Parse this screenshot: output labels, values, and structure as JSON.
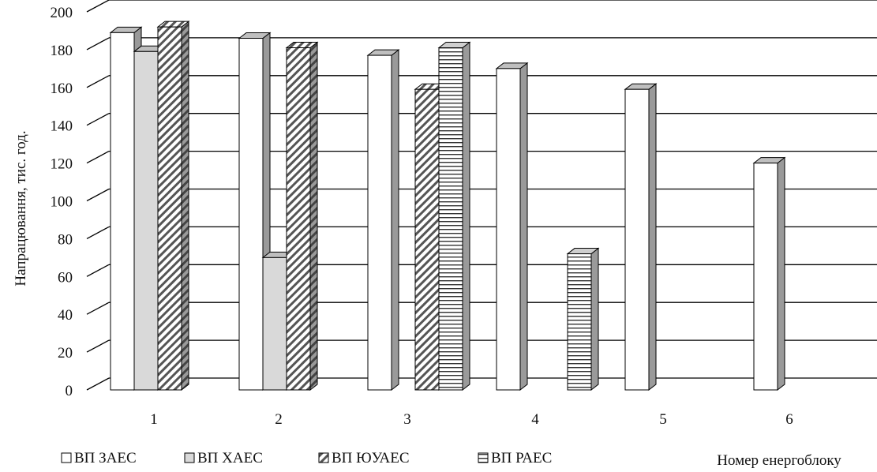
{
  "chart_data": {
    "type": "bar",
    "title": "",
    "xlabel": "Номер енергоблоку",
    "ylabel": "Напрацювання,  тис. год.",
    "ylim": [
      0,
      200
    ],
    "ytick_step": 20,
    "yticks": [
      "0",
      "20",
      "40",
      "60",
      "80",
      "100",
      "120",
      "140",
      "160",
      "180",
      "200"
    ],
    "categories": [
      "1",
      "2",
      "3",
      "4",
      "5",
      "6"
    ],
    "grid": true,
    "legend_position": "bottom-left",
    "series": [
      {
        "name": "ВП ЗАЕС",
        "pattern": "solid",
        "fill": "#ffffff",
        "values": [
          189,
          186,
          177,
          170,
          159,
          120
        ]
      },
      {
        "name": "ВП ХАЕС",
        "pattern": "solid",
        "fill": "#d9d9d9",
        "values": [
          179,
          70,
          null,
          null,
          null,
          null
        ]
      },
      {
        "name": "ВП ЮУАЕС",
        "pattern": "diagonal",
        "fill": "#ffffff",
        "values": [
          192,
          181,
          159,
          null,
          null,
          null
        ]
      },
      {
        "name": "ВП РАЕС",
        "pattern": "horizontal",
        "fill": "#ffffff",
        "values": [
          null,
          null,
          181,
          72,
          null,
          null
        ]
      }
    ]
  }
}
